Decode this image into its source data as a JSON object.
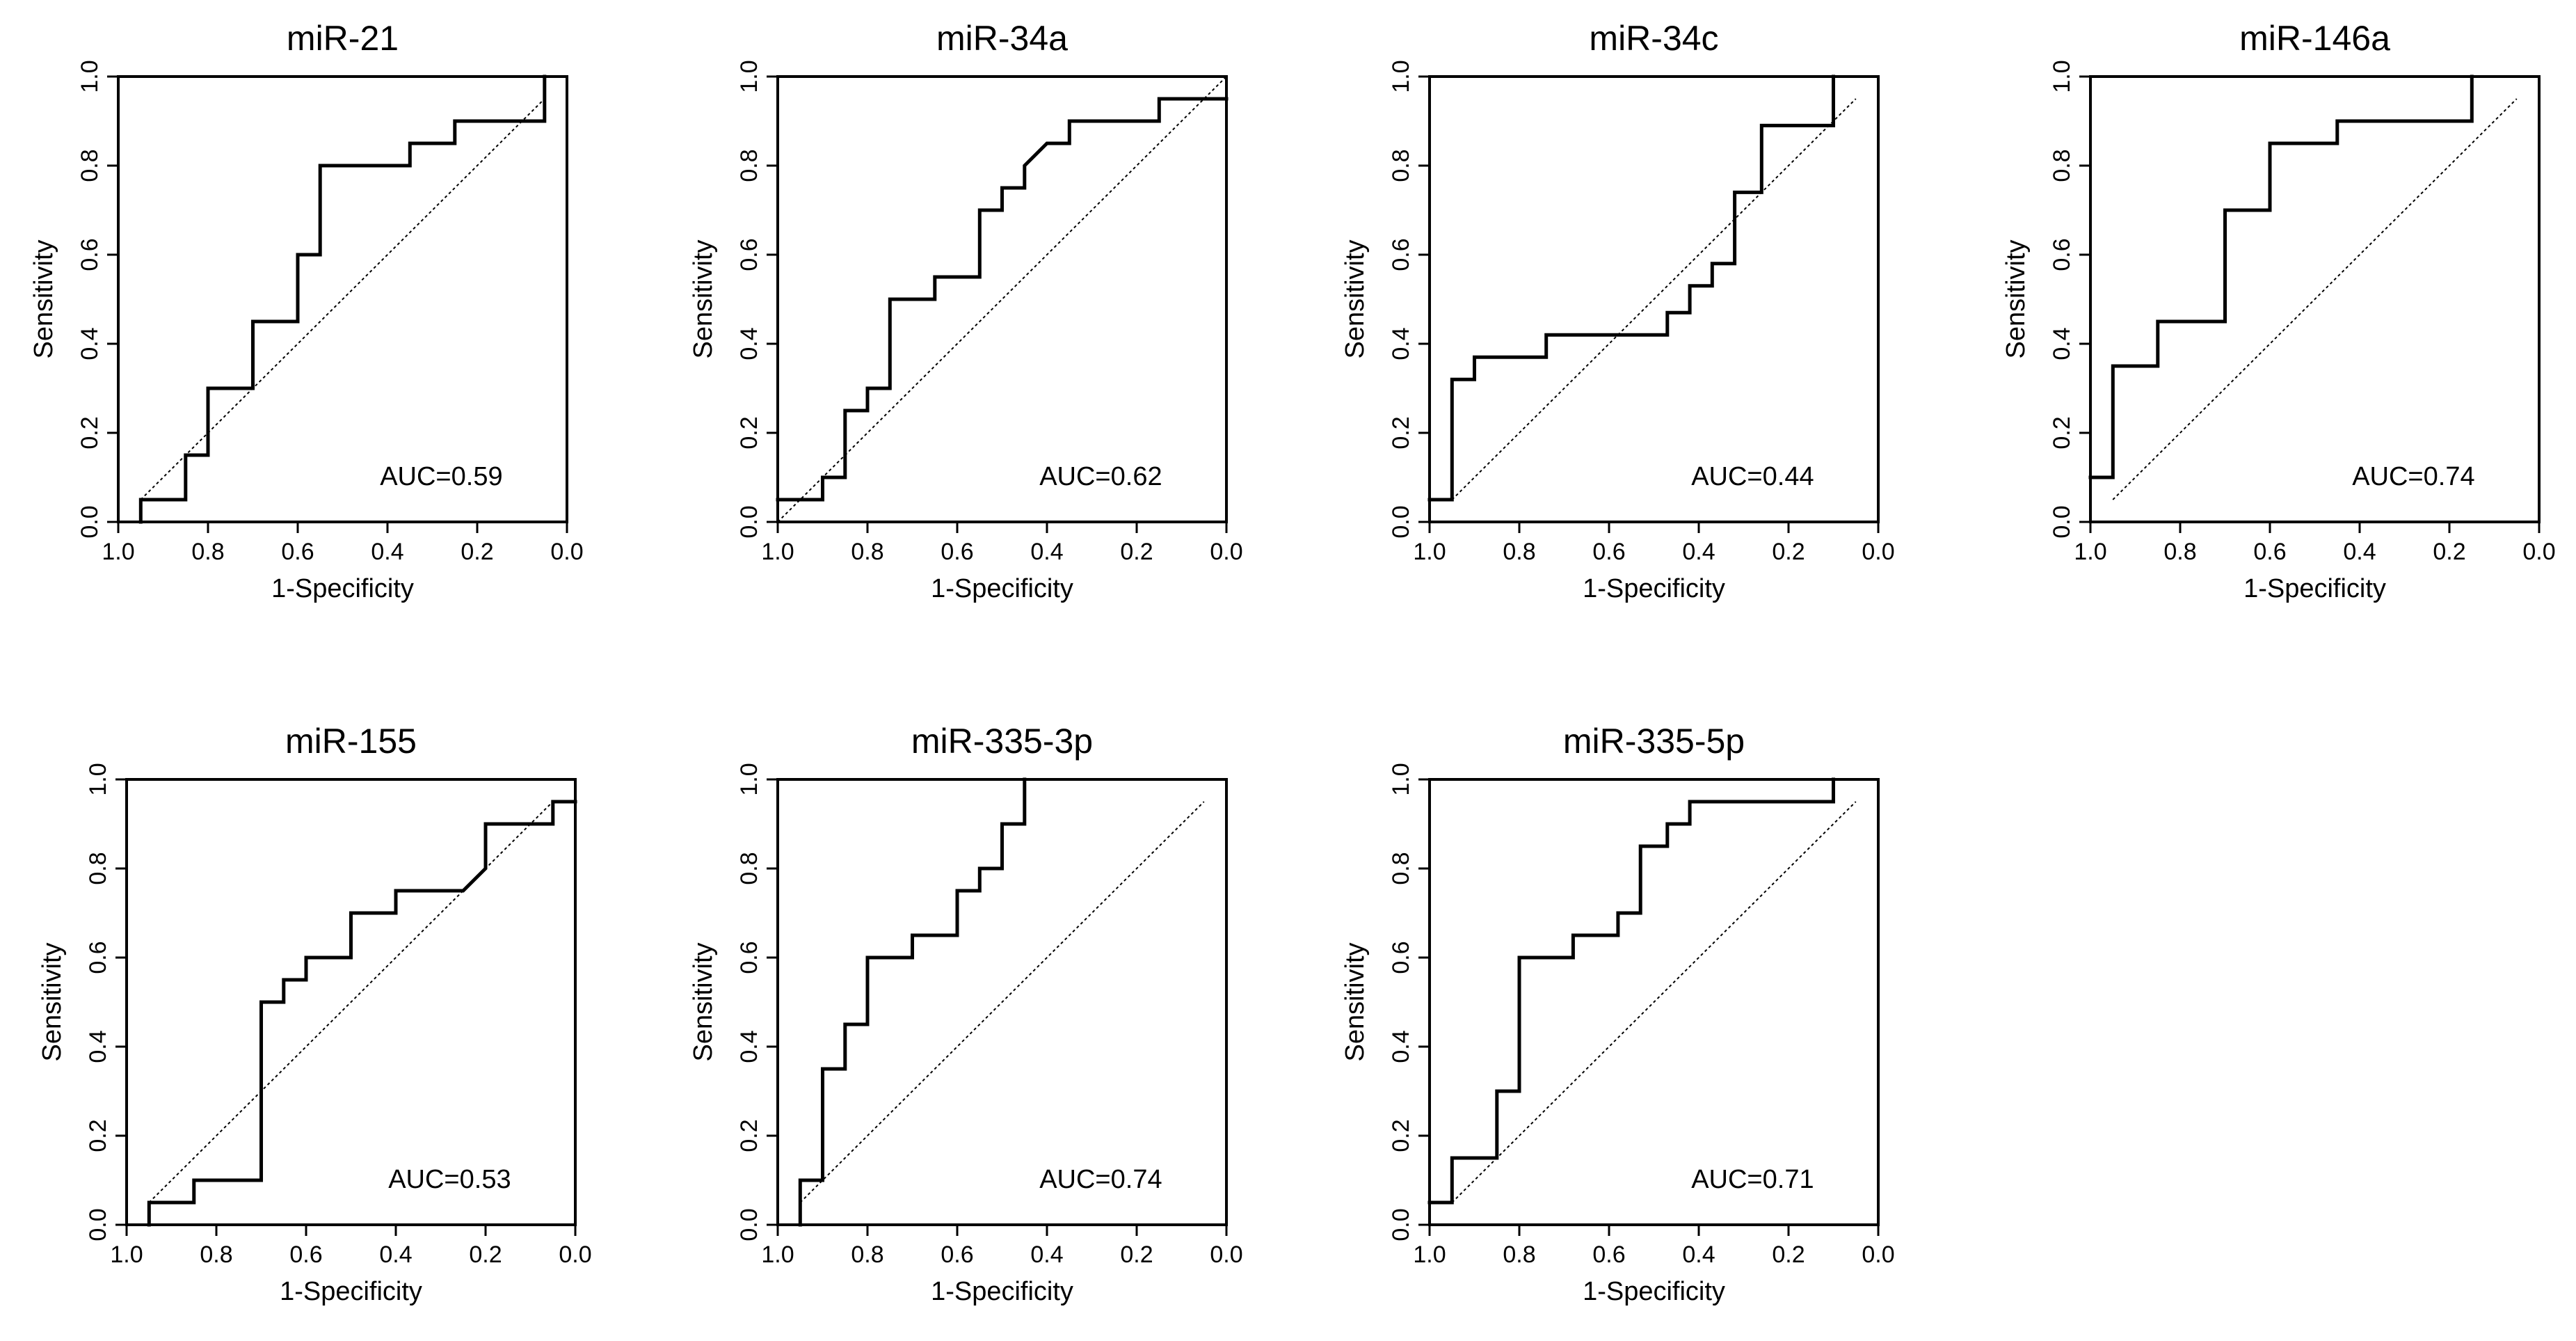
{
  "figure": {
    "xlabel": "1-Specificity",
    "ylabel": "Sensitivity",
    "x_ticks": [
      "1.0",
      "0.8",
      "0.6",
      "0.4",
      "0.2",
      "0.0"
    ],
    "y_ticks": [
      "0.0",
      "0.2",
      "0.4",
      "0.6",
      "0.8",
      "1.0"
    ],
    "roc_color": "#000000",
    "reference_color": "#000000"
  },
  "chart_data": [
    {
      "type": "line",
      "title": "miR-21",
      "auc_label": "AUC=0.59",
      "xlabel": "1-Specificity",
      "ylabel": "Sensitivity",
      "xlim": [
        1.0,
        0.0
      ],
      "ylim": [
        0.0,
        1.0
      ],
      "reference": {
        "x": [
          0.95,
          0.05
        ],
        "y": [
          0.05,
          0.95
        ]
      },
      "x": [
        0.95,
        0.95,
        0.85,
        0.85,
        0.8,
        0.8,
        0.7,
        0.7,
        0.6,
        0.6,
        0.55,
        0.55,
        0.35,
        0.35,
        0.25,
        0.25,
        0.05,
        0.05
      ],
      "y": [
        0.0,
        0.05,
        0.05,
        0.15,
        0.15,
        0.3,
        0.3,
        0.45,
        0.45,
        0.6,
        0.6,
        0.8,
        0.8,
        0.85,
        0.85,
        0.9,
        0.9,
        1.0
      ]
    },
    {
      "type": "line",
      "title": "miR-34a",
      "auc_label": "AUC=0.62",
      "xlabel": "1-Specificity",
      "ylabel": "Sensitivity",
      "xlim": [
        1.0,
        0.0
      ],
      "ylim": [
        0.0,
        1.0
      ],
      "reference": {
        "x": [
          1.0,
          0.0
        ],
        "y": [
          0.0,
          1.0
        ]
      },
      "x": [
        1.0,
        0.9,
        0.9,
        0.85,
        0.85,
        0.8,
        0.8,
        0.75,
        0.75,
        0.65,
        0.65,
        0.55,
        0.55,
        0.5,
        0.5,
        0.45,
        0.45,
        0.4,
        0.4,
        0.35,
        0.35,
        0.15,
        0.15,
        0.0
      ],
      "y": [
        0.05,
        0.05,
        0.1,
        0.1,
        0.25,
        0.25,
        0.3,
        0.3,
        0.5,
        0.5,
        0.55,
        0.55,
        0.7,
        0.7,
        0.75,
        0.75,
        0.8,
        0.85,
        0.85,
        0.85,
        0.9,
        0.9,
        0.95,
        0.95
      ]
    },
    {
      "type": "line",
      "title": "miR-34c",
      "auc_label": "AUC=0.44",
      "xlabel": "1-Specificity",
      "ylabel": "Sensitivity",
      "xlim": [
        1.0,
        0.0
      ],
      "ylim": [
        0.0,
        1.0
      ],
      "reference": {
        "x": [
          0.95,
          0.05
        ],
        "y": [
          0.05,
          0.95
        ]
      },
      "x": [
        1.0,
        0.95,
        0.95,
        0.9,
        0.9,
        0.74,
        0.74,
        0.47,
        0.47,
        0.42,
        0.42,
        0.37,
        0.37,
        0.32,
        0.32,
        0.26,
        0.26,
        0.1,
        0.1
      ],
      "y": [
        0.05,
        0.05,
        0.32,
        0.32,
        0.37,
        0.37,
        0.42,
        0.42,
        0.47,
        0.47,
        0.53,
        0.53,
        0.58,
        0.58,
        0.74,
        0.74,
        0.89,
        0.89,
        1.0
      ]
    },
    {
      "type": "line",
      "title": "miR-146a",
      "auc_label": "AUC=0.74",
      "xlabel": "1-Specificity",
      "ylabel": "Sensitivity",
      "xlim": [
        1.0,
        0.0
      ],
      "ylim": [
        0.0,
        1.0
      ],
      "reference": {
        "x": [
          0.95,
          0.05
        ],
        "y": [
          0.05,
          0.95
        ]
      },
      "x": [
        1.0,
        0.95,
        0.95,
        0.85,
        0.85,
        0.7,
        0.7,
        0.6,
        0.6,
        0.45,
        0.45,
        0.15,
        0.15
      ],
      "y": [
        0.1,
        0.1,
        0.35,
        0.35,
        0.45,
        0.45,
        0.7,
        0.7,
        0.85,
        0.85,
        0.9,
        0.9,
        1.0
      ]
    },
    {
      "type": "line",
      "title": "miR-155",
      "auc_label": "AUC=0.53",
      "xlabel": "1-Specificity",
      "ylabel": "Sensitivity",
      "xlim": [
        1.0,
        0.0
      ],
      "ylim": [
        0.0,
        1.0
      ],
      "reference": {
        "x": [
          0.95,
          0.05
        ],
        "y": [
          0.05,
          0.95
        ]
      },
      "x": [
        0.95,
        0.95,
        0.85,
        0.85,
        0.7,
        0.7,
        0.65,
        0.65,
        0.6,
        0.6,
        0.5,
        0.5,
        0.4,
        0.4,
        0.25,
        0.2,
        0.2,
        0.05,
        0.05,
        0.0
      ],
      "y": [
        0.0,
        0.05,
        0.05,
        0.1,
        0.1,
        0.5,
        0.5,
        0.55,
        0.55,
        0.6,
        0.6,
        0.7,
        0.7,
        0.75,
        0.75,
        0.8,
        0.9,
        0.9,
        0.95,
        0.95
      ]
    },
    {
      "type": "line",
      "title": "miR-335-3p",
      "auc_label": "AUC=0.74",
      "xlabel": "1-Specificity",
      "ylabel": "Sensitivity",
      "xlim": [
        1.0,
        0.0
      ],
      "ylim": [
        0.0,
        1.0
      ],
      "reference": {
        "x": [
          0.95,
          0.05
        ],
        "y": [
          0.05,
          0.95
        ]
      },
      "x": [
        0.95,
        0.95,
        0.9,
        0.9,
        0.85,
        0.85,
        0.8,
        0.8,
        0.7,
        0.7,
        0.6,
        0.6,
        0.55,
        0.55,
        0.5,
        0.5,
        0.45,
        0.45
      ],
      "y": [
        0.0,
        0.1,
        0.1,
        0.35,
        0.35,
        0.45,
        0.45,
        0.6,
        0.6,
        0.65,
        0.65,
        0.75,
        0.75,
        0.8,
        0.8,
        0.9,
        0.9,
        1.0
      ]
    },
    {
      "type": "line",
      "title": "miR-335-5p",
      "auc_label": "AUC=0.71",
      "xlabel": "1-Specificity",
      "ylabel": "Sensitivity",
      "xlim": [
        1.0,
        0.0
      ],
      "ylim": [
        0.0,
        1.0
      ],
      "reference": {
        "x": [
          0.95,
          0.05
        ],
        "y": [
          0.05,
          0.95
        ]
      },
      "x": [
        1.0,
        0.95,
        0.95,
        0.85,
        0.85,
        0.8,
        0.8,
        0.68,
        0.68,
        0.58,
        0.58,
        0.53,
        0.53,
        0.47,
        0.47,
        0.42,
        0.42,
        0.1,
        0.1
      ],
      "y": [
        0.05,
        0.05,
        0.15,
        0.15,
        0.3,
        0.3,
        0.6,
        0.6,
        0.65,
        0.65,
        0.7,
        0.7,
        0.85,
        0.85,
        0.9,
        0.9,
        0.95,
        0.95,
        1.0
      ]
    }
  ]
}
